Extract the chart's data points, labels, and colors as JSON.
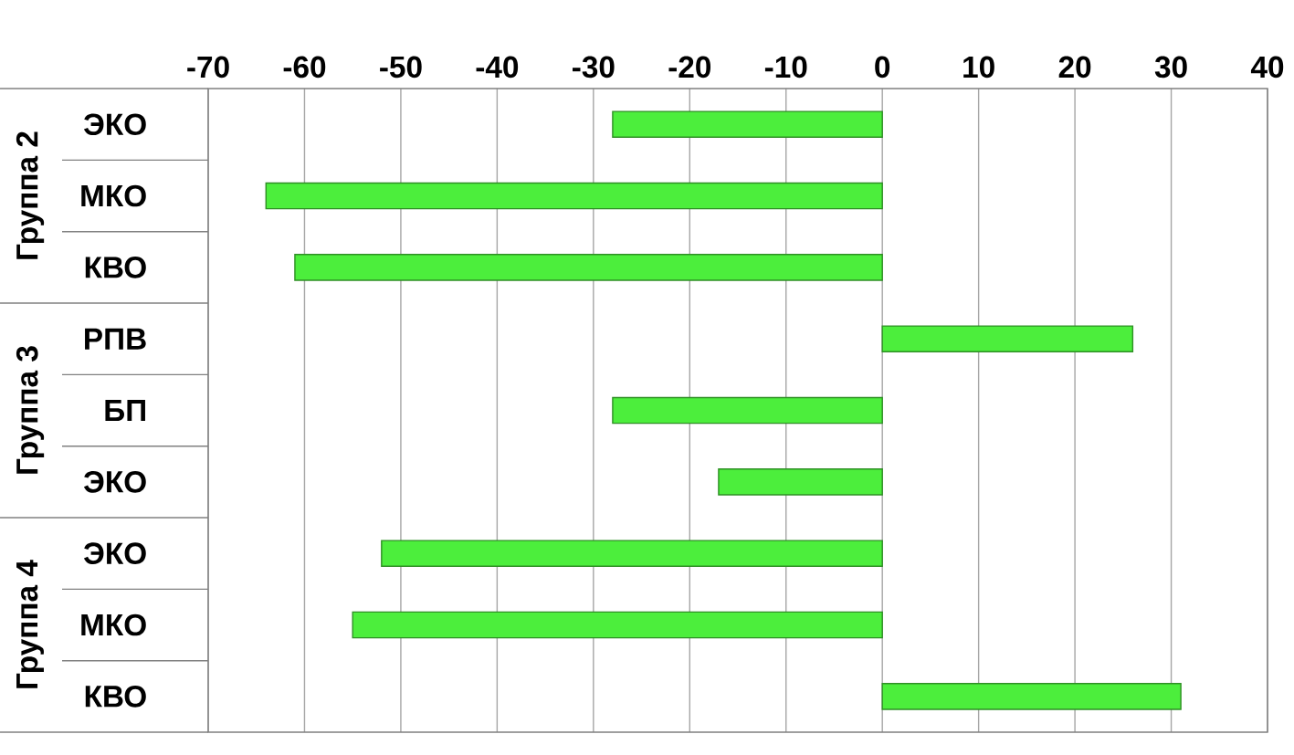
{
  "chart_data": {
    "type": "bar",
    "orientation": "horizontal",
    "categories": [
      "ЭКО",
      "МКО",
      "КВО",
      "РПВ",
      "БП",
      "ЭКО",
      "ЭКО",
      "МКО",
      "КВО"
    ],
    "values": [
      -28,
      -64,
      -61,
      26,
      -28,
      -17,
      -52,
      -55,
      31
    ],
    "color": "#4cee3c",
    "xlim": [
      -70,
      40
    ],
    "xticks": [
      -70,
      -60,
      -50,
      -40,
      -30,
      -20,
      -10,
      0,
      10,
      20,
      30,
      40
    ],
    "grid": "x",
    "annotations": [
      "Группа 2",
      "Группа 3",
      "Группа 4"
    ]
  }
}
